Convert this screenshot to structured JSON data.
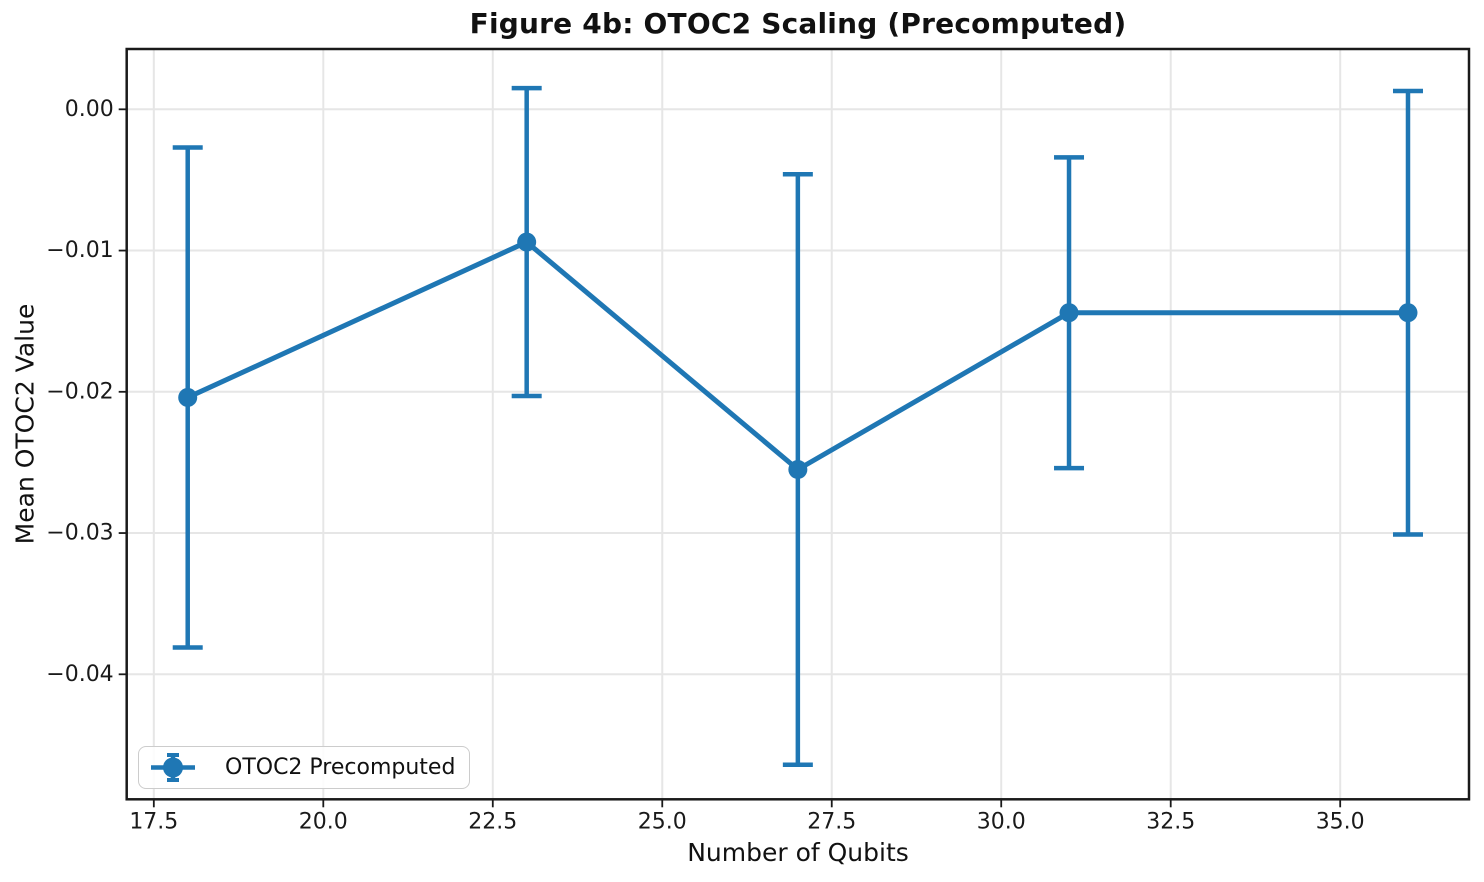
{
  "chart_data": {
    "type": "line",
    "title": "Figure 4b: OTOC2 Scaling (Precomputed)",
    "xlabel": "Number of Qubits",
    "ylabel": "Mean OTOC2 Value",
    "series": [
      {
        "name": "OTOC2 Precomputed",
        "color": "#1f77b4",
        "x": [
          18,
          23,
          27,
          31,
          36
        ],
        "y": [
          -0.0204,
          -0.0094,
          -0.0255,
          -0.0144,
          -0.0144
        ],
        "yerr": [
          0.0177,
          0.0109,
          0.0209,
          0.011,
          0.0157
        ]
      }
    ],
    "x_ticks": [
      17.5,
      20.0,
      22.5,
      25.0,
      27.5,
      30.0,
      32.5,
      35.0
    ],
    "x_tick_labels": [
      "17.5",
      "20.0",
      "22.5",
      "25.0",
      "27.5",
      "30.0",
      "32.5",
      "35.0"
    ],
    "y_ticks": [
      0.0,
      -0.01,
      -0.02,
      -0.03,
      -0.04
    ],
    "y_tick_labels": [
      "0.00",
      "−0.01",
      "−0.02",
      "−0.03",
      "−0.04"
    ],
    "xlim": [
      17.1,
      36.9
    ],
    "ylim": [
      -0.04885,
      0.00427
    ],
    "grid": true,
    "legend_position": "lower left",
    "colors": {
      "accent": "#1f77b4",
      "grid": "#e6e6e6",
      "spine": "#1a1a1a",
      "tick_text": "#1a1a1a"
    }
  }
}
